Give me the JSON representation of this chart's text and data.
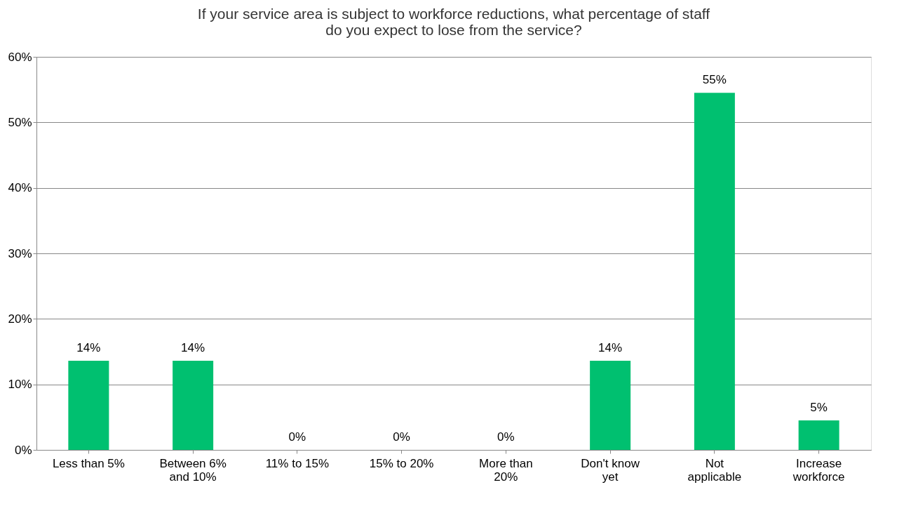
{
  "chart_data": {
    "type": "bar",
    "title": "If your service area is subject to workforce reductions, what percentage of staff do you expect to lose from the service?",
    "categories": [
      "Less than 5%",
      "Between 6% and 10%",
      "11% to 15%",
      "15% to 20%",
      "More than 20%",
      "Don't know yet",
      "Not applicable",
      "Increase workforce"
    ],
    "values": [
      13.6,
      13.6,
      0,
      0,
      0,
      13.6,
      54.5,
      4.5
    ],
    "value_labels": [
      "14%",
      "14%",
      "0%",
      "0%",
      "0%",
      "14%",
      "55%",
      "5%"
    ],
    "color": "#00c070",
    "ylim": [
      0,
      60
    ],
    "yticks": [
      {
        "value": 0,
        "label": "0%"
      },
      {
        "value": 10,
        "label": "10%"
      },
      {
        "value": 20,
        "label": "20%"
      },
      {
        "value": 30,
        "label": "30%"
      },
      {
        "value": 40,
        "label": "40%"
      },
      {
        "value": 50,
        "label": "50%"
      },
      {
        "value": 60,
        "label": "60%"
      }
    ],
    "grid": "y"
  }
}
